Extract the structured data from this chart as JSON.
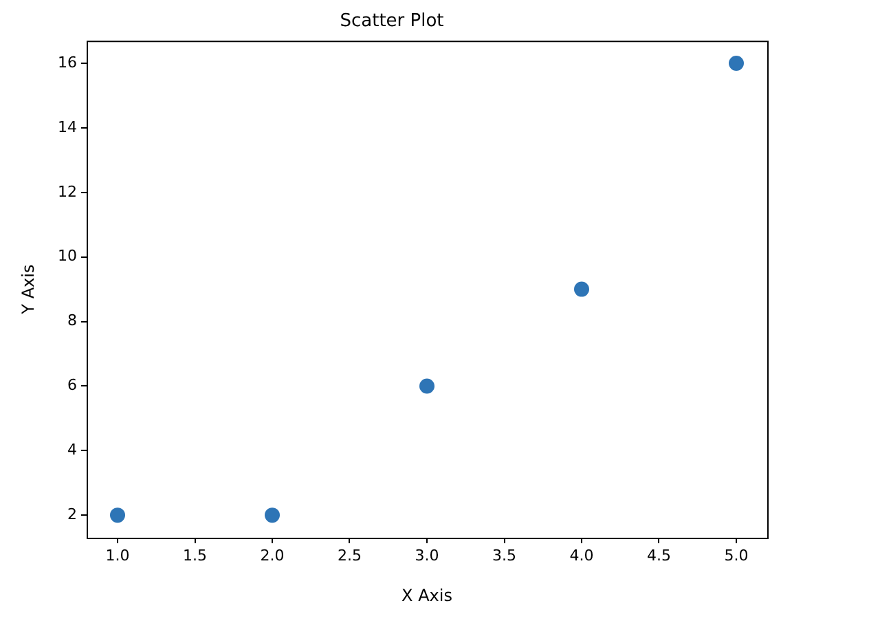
{
  "chart_data": {
    "type": "scatter",
    "title": "Scatter Plot",
    "xlabel": "X Axis",
    "ylabel": "Y Axis",
    "x": [
      1,
      2,
      3,
      4,
      5
    ],
    "series": [
      {
        "color": "#2e75b6",
        "values": [
          2,
          2,
          6,
          9,
          16
        ]
      }
    ],
    "xlim": [
      0.8,
      5.2
    ],
    "xticks": [
      {
        "value": 1,
        "label": "1.0"
      },
      {
        "value": 1.5,
        "label": "1.5"
      },
      {
        "value": 2,
        "label": "2.0"
      },
      {
        "value": 2.5,
        "label": "2.5"
      },
      {
        "value": 3,
        "label": "3.0"
      },
      {
        "value": 3.5,
        "label": "3.5"
      },
      {
        "value": 4,
        "label": "4.0"
      },
      {
        "value": 4.5,
        "label": "4.5"
      },
      {
        "value": 5,
        "label": "5.0"
      }
    ],
    "ylim": [
      1.3,
      16.7
    ],
    "yticks": [
      2,
      4,
      6,
      8,
      10,
      12,
      14,
      16
    ],
    "marker": "circle",
    "grid": false,
    "legend": false
  }
}
